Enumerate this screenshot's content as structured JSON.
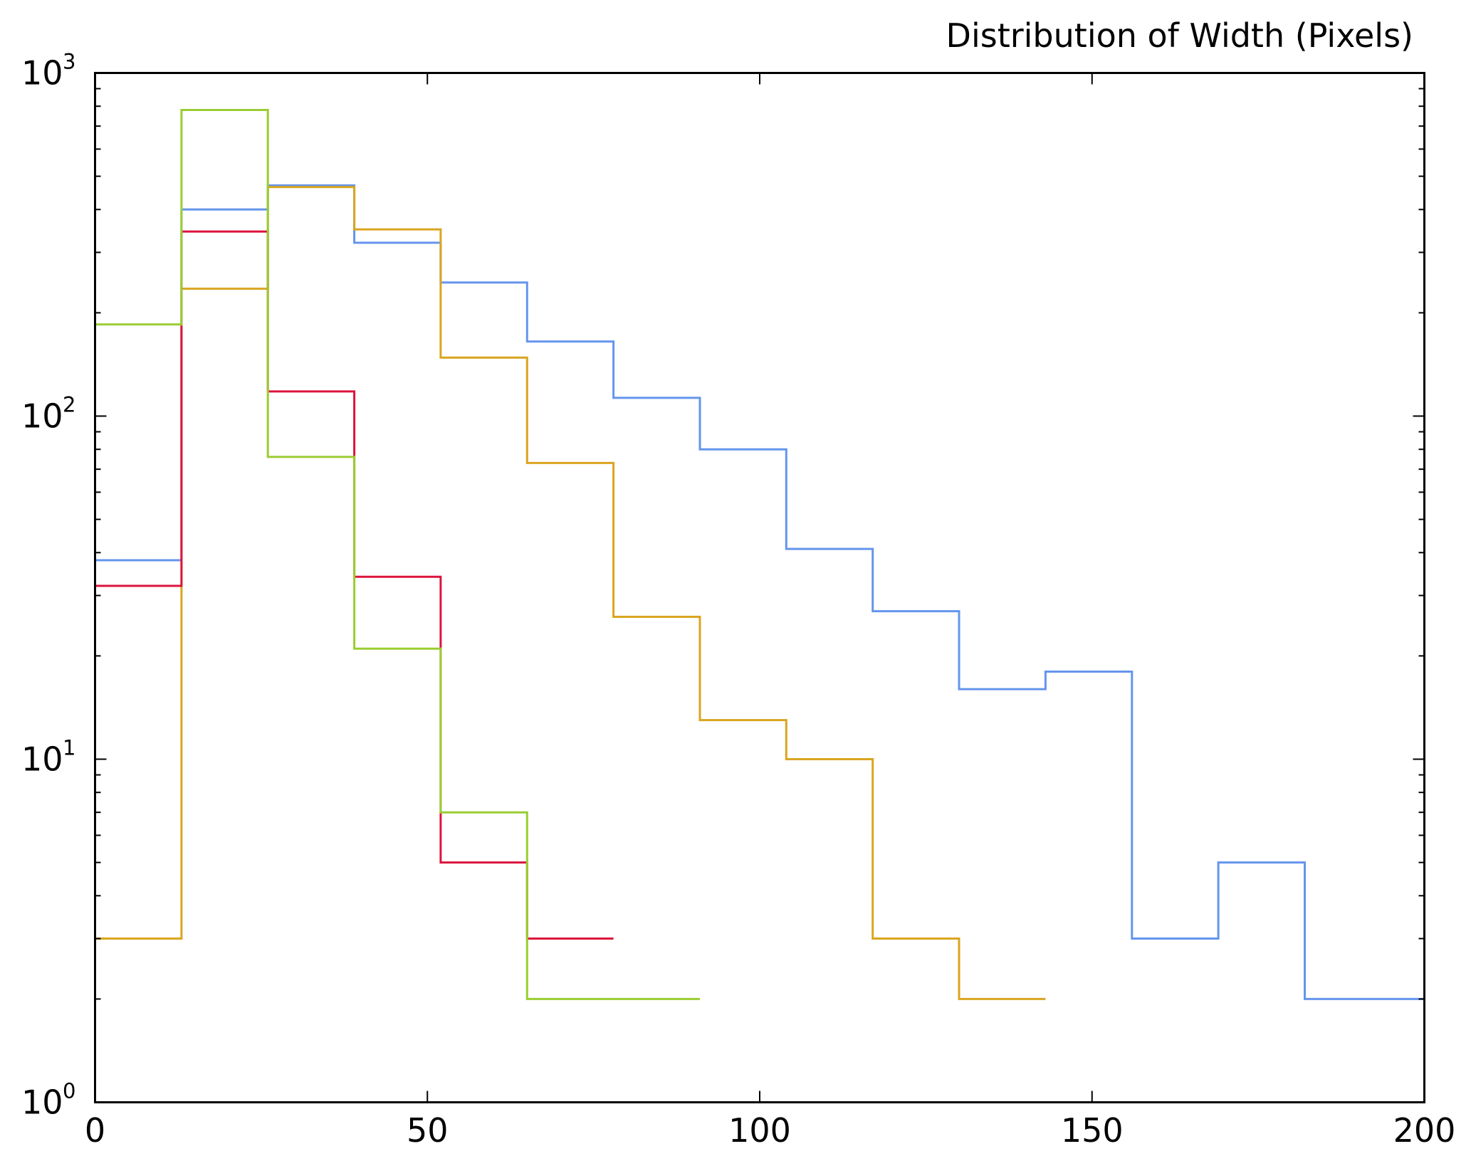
{
  "chart_data": {
    "type": "histogram-step",
    "title": "Distribution of Width (Pixels)",
    "xlabel": "",
    "ylabel": "",
    "xlim": [
      0,
      200
    ],
    "ylim": [
      1,
      1000
    ],
    "yscale": "log",
    "grid": false,
    "legend": "none",
    "bin_edges": [
      0,
      13,
      26,
      39,
      52,
      65,
      78,
      91,
      104,
      117,
      130,
      143,
      156,
      169,
      182,
      200
    ],
    "x_ticks": [
      {
        "value": 0,
        "label": "0"
      },
      {
        "value": 50,
        "label": "50"
      },
      {
        "value": 100,
        "label": "100"
      },
      {
        "value": 150,
        "label": "150"
      },
      {
        "value": 200,
        "label": "200"
      }
    ],
    "y_ticks": [
      {
        "value": 1,
        "base": "10",
        "exp": "0"
      },
      {
        "value": 10,
        "base": "10",
        "exp": "1"
      },
      {
        "value": 100,
        "base": "10",
        "exp": "2"
      },
      {
        "value": 1000,
        "base": "10",
        "exp": "3"
      }
    ],
    "series": [
      {
        "color": "#6495ED",
        "values": [
          38,
          400,
          470,
          320,
          245,
          165,
          113,
          80,
          41,
          27,
          16,
          18,
          3,
          5,
          2
        ]
      },
      {
        "color": "#DAA520",
        "values": [
          3,
          235,
          465,
          350,
          148,
          73,
          26,
          13,
          10,
          3,
          2
        ]
      },
      {
        "color": "#DC143C",
        "values": [
          32,
          345,
          118,
          34,
          5,
          3
        ]
      },
      {
        "color": "#9ACD32",
        "values": [
          185,
          780,
          76,
          21,
          7,
          2,
          2
        ]
      }
    ]
  }
}
